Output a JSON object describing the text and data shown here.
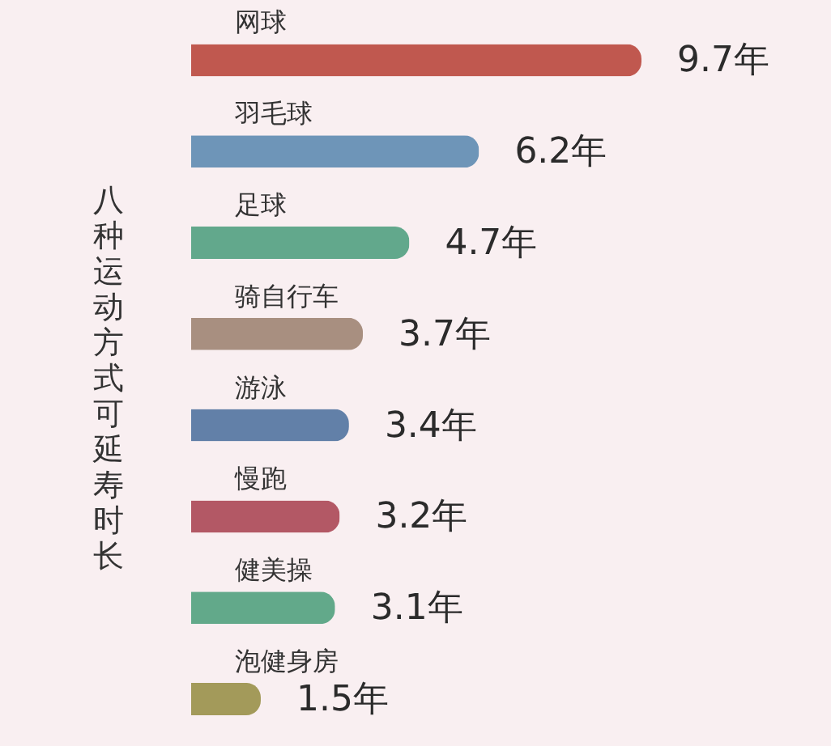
{
  "chart_data": {
    "type": "bar",
    "orientation": "horizontal",
    "title": "八种运动方式可延寿时长",
    "categories": [
      "网球",
      "羽毛球",
      "足球",
      "骑自行车",
      "游泳",
      "慢跑",
      "健美操",
      "泡健身房"
    ],
    "values": [
      9.7,
      6.2,
      4.7,
      3.7,
      3.4,
      3.2,
      3.1,
      1.5
    ],
    "colors": [
      "#c0584f",
      "#6e95b8",
      "#62a88c",
      "#a88f80",
      "#6280a8",
      "#b35865",
      "#62a98a",
      "#a39a5a"
    ],
    "value_labels": [
      "9.7年",
      "6.2年",
      "4.7年",
      "3.7年",
      "3.4年",
      "3.2年",
      "3.1年",
      "1.5年"
    ],
    "tick_labels": "y"
  }
}
